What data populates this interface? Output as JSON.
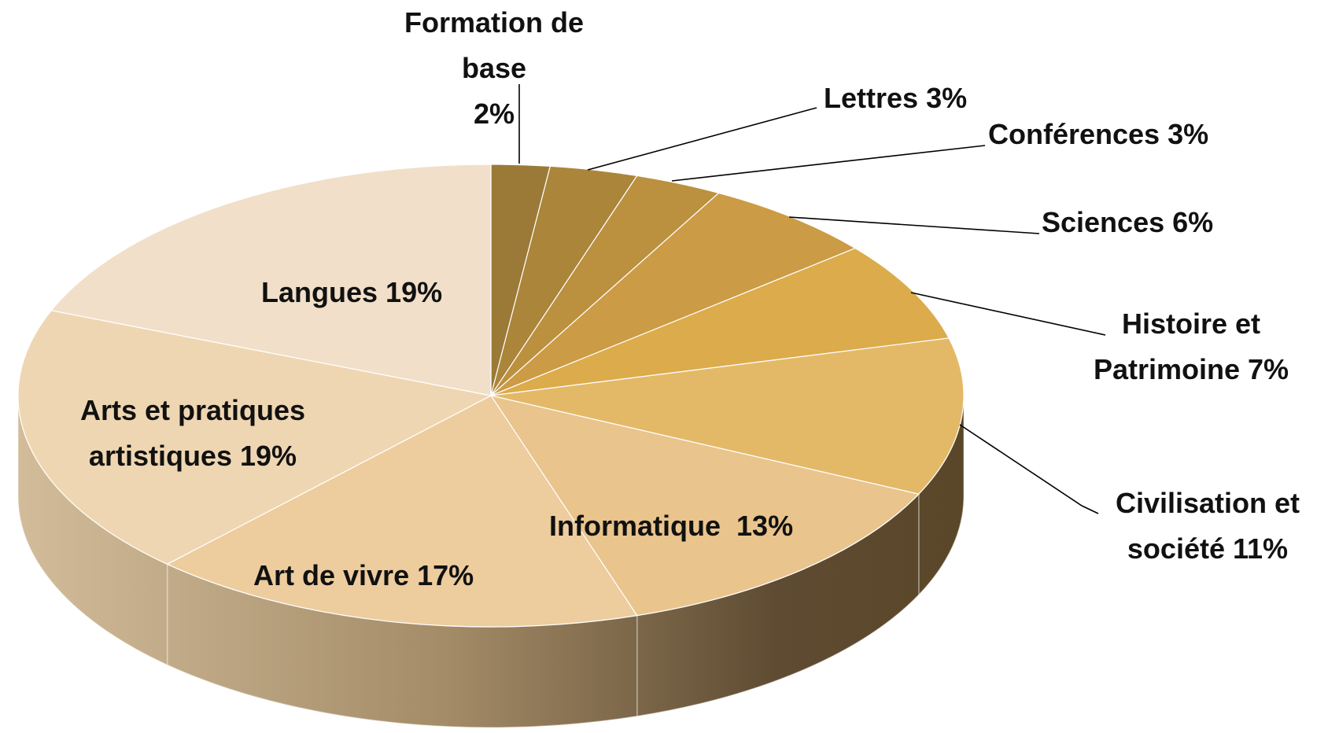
{
  "chart_data": {
    "type": "pie",
    "categories": [
      "Formation de base",
      "Lettres",
      "Conférences",
      "Sciences",
      "Histoire et Patrimoine",
      "Civilisation et société",
      "Informatique",
      "Art de vivre",
      "Arts et pratiques artistiques",
      "Langues"
    ],
    "values": [
      2,
      3,
      3,
      6,
      7,
      11,
      13,
      17,
      19,
      19
    ],
    "value_labels": [
      "2%",
      "3%",
      "3%",
      "6%",
      "7%",
      "11%",
      "13%",
      "17%",
      "19%",
      "19%"
    ],
    "colors": [
      "#9a7a36",
      "#aa853a",
      "#bb903e",
      "#cb9b45",
      "#dcab4b",
      "#e3b968",
      "#e9c48c",
      "#edcc9e",
      "#efd6b2",
      "#f1dfc9"
    ]
  }
}
